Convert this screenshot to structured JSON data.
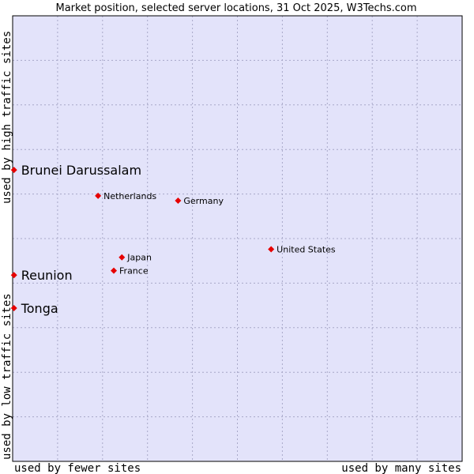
{
  "chart_data": {
    "type": "scatter",
    "title": "Market position, selected server locations, 31 Oct 2025, W3Techs.com",
    "xlabel_left": "used by fewer sites",
    "xlabel_right": "used by many sites",
    "ylabel_low": "used by low traffic sites",
    "ylabel_high": "used by high traffic sites",
    "xlim": [
      0,
      100
    ],
    "ylim": [
      0,
      100
    ],
    "grid": true,
    "colors": {
      "plot_background": "#e3e3fa",
      "plot_border": "#000000",
      "point": "#e60000"
    },
    "points": [
      {
        "name": "Brunei Darussalam",
        "x": 0.3,
        "y": 65.4,
        "highlight": true
      },
      {
        "name": "Netherlands",
        "x": 19.0,
        "y": 59.6,
        "highlight": false
      },
      {
        "name": "Germany",
        "x": 36.8,
        "y": 58.5,
        "highlight": false
      },
      {
        "name": "United States",
        "x": 57.5,
        "y": 47.6,
        "highlight": false
      },
      {
        "name": "Japan",
        "x": 24.3,
        "y": 45.8,
        "highlight": false
      },
      {
        "name": "France",
        "x": 22.5,
        "y": 42.8,
        "highlight": false
      },
      {
        "name": "Reunion",
        "x": 0.3,
        "y": 41.8,
        "highlight": true
      },
      {
        "name": "Tonga",
        "x": 0.3,
        "y": 34.4,
        "highlight": true
      }
    ]
  }
}
